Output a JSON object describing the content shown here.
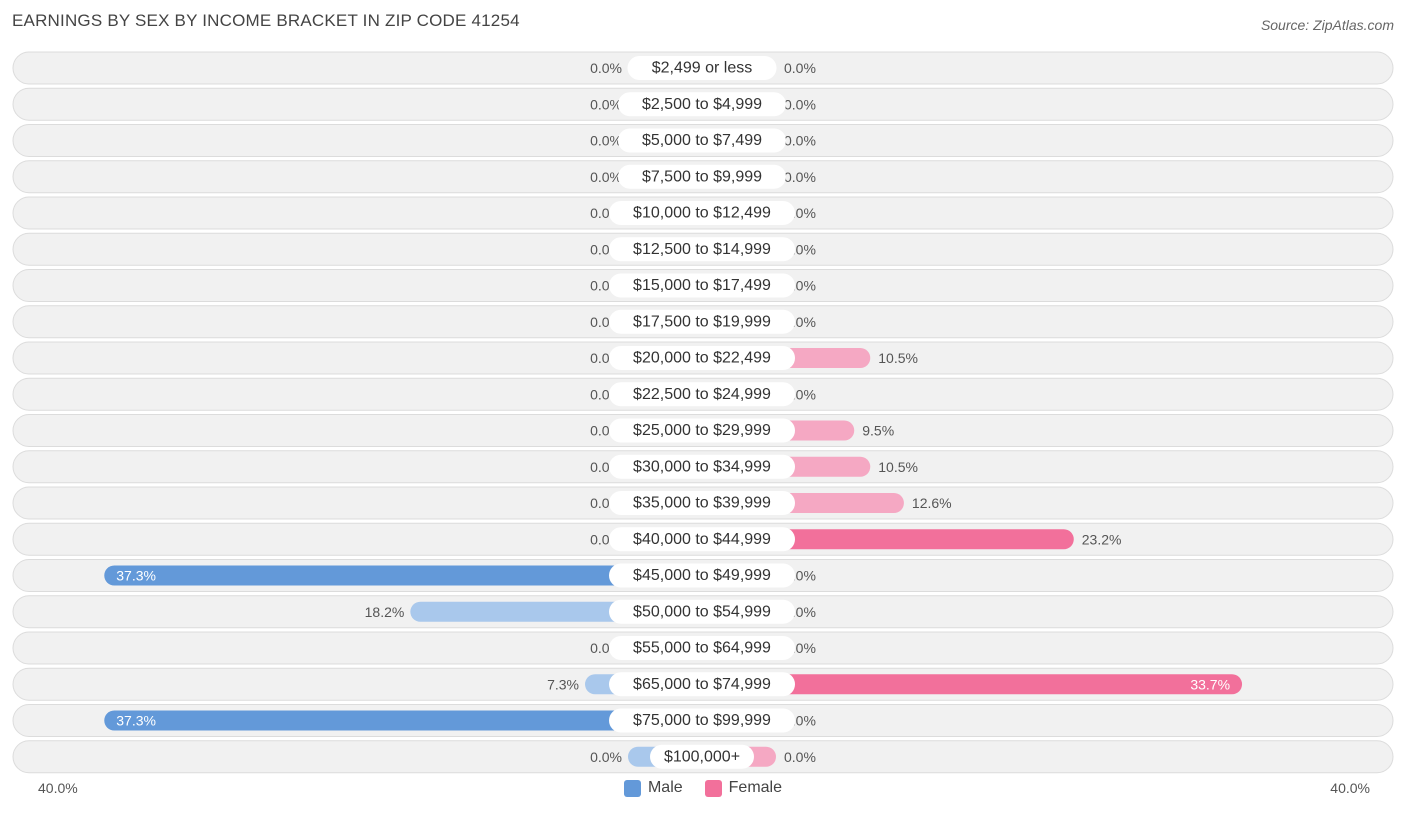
{
  "header": {
    "title": "EARNINGS BY SEX BY INCOME BRACKET IN ZIP CODE 41254",
    "source": "Source: ZipAtlas.com"
  },
  "axis": {
    "left_label": "40.0%",
    "right_label": "40.0%"
  },
  "legend": {
    "male_label": "Male",
    "female_label": "Female"
  },
  "colors": {
    "male_strong": "#6399d9",
    "male_light": "#a9c8ec",
    "female_strong": "#f2709b",
    "female_light": "#f5a8c3",
    "row_bg": "#f1f1f1",
    "row_border": "#dcdcdc"
  },
  "chart_data": {
    "type": "bar",
    "orientation": "horizontal-diverging",
    "title": "EARNINGS BY SEX BY INCOME BRACKET IN ZIP CODE 41254",
    "xlim": [
      -40,
      40
    ],
    "categories": [
      "$2,499 or less",
      "$2,500 to $4,999",
      "$5,000 to $7,499",
      "$7,500 to $9,999",
      "$10,000 to $12,499",
      "$12,500 to $14,999",
      "$15,000 to $17,499",
      "$17,500 to $19,999",
      "$20,000 to $22,499",
      "$22,500 to $24,999",
      "$25,000 to $29,999",
      "$30,000 to $34,999",
      "$35,000 to $39,999",
      "$40,000 to $44,999",
      "$45,000 to $49,999",
      "$50,000 to $54,999",
      "$55,000 to $64,999",
      "$65,000 to $74,999",
      "$75,000 to $99,999",
      "$100,000+"
    ],
    "series": [
      {
        "name": "Male",
        "values": [
          0.0,
          0.0,
          0.0,
          0.0,
          0.0,
          0.0,
          0.0,
          0.0,
          0.0,
          0.0,
          0.0,
          0.0,
          0.0,
          0.0,
          37.3,
          18.2,
          0.0,
          7.3,
          37.3,
          0.0
        ],
        "labels": [
          "0.0%",
          "0.0%",
          "0.0%",
          "0.0%",
          "0.0%",
          "0.0%",
          "0.0%",
          "0.0%",
          "0.0%",
          "0.0%",
          "0.0%",
          "0.0%",
          "0.0%",
          "0.0%",
          "37.3%",
          "18.2%",
          "0.0%",
          "7.3%",
          "37.3%",
          "0.0%"
        ]
      },
      {
        "name": "Female",
        "values": [
          0.0,
          0.0,
          0.0,
          0.0,
          0.0,
          0.0,
          0.0,
          0.0,
          10.5,
          0.0,
          9.5,
          10.5,
          12.6,
          23.2,
          0.0,
          0.0,
          0.0,
          33.7,
          0.0,
          0.0
        ],
        "labels": [
          "0.0%",
          "0.0%",
          "0.0%",
          "0.0%",
          "0.0%",
          "0.0%",
          "0.0%",
          "0.0%",
          "10.5%",
          "0.0%",
          "9.5%",
          "10.5%",
          "12.6%",
          "23.2%",
          "0.0%",
          "0.0%",
          "0.0%",
          "33.7%",
          "0.0%",
          "0.0%"
        ]
      }
    ]
  }
}
